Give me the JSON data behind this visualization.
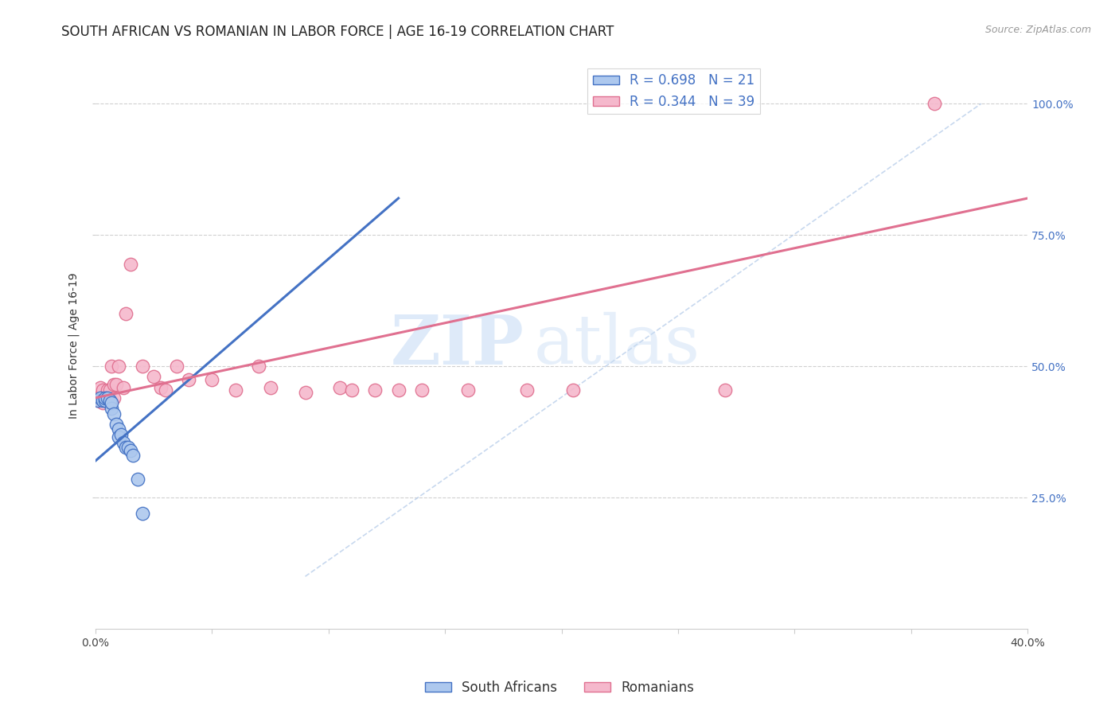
{
  "title": "SOUTH AFRICAN VS ROMANIAN IN LABOR FORCE | AGE 16-19 CORRELATION CHART",
  "source": "Source: ZipAtlas.com",
  "ylabel": "In Labor Force | Age 16-19",
  "xlim": [
    0.0,
    0.4
  ],
  "ylim": [
    0.0,
    1.08
  ],
  "ytick_vals": [
    0.25,
    0.5,
    0.75,
    1.0
  ],
  "ytick_labels": [
    "25.0%",
    "50.0%",
    "75.0%",
    "100.0%"
  ],
  "xtick_vals": [
    0.0,
    0.05,
    0.1,
    0.15,
    0.2,
    0.25,
    0.3,
    0.35,
    0.4
  ],
  "xtick_labels": [
    "0.0%",
    "",
    "",
    "",
    "",
    "",
    "",
    "",
    "40.0%"
  ],
  "south_african_x": [
    0.001,
    0.002,
    0.003,
    0.004,
    0.004,
    0.005,
    0.006,
    0.007,
    0.007,
    0.008,
    0.009,
    0.01,
    0.01,
    0.011,
    0.012,
    0.013,
    0.014,
    0.015,
    0.016,
    0.018,
    0.02
  ],
  "south_african_y": [
    0.435,
    0.44,
    0.435,
    0.435,
    0.44,
    0.44,
    0.435,
    0.42,
    0.43,
    0.41,
    0.39,
    0.38,
    0.365,
    0.37,
    0.355,
    0.345,
    0.345,
    0.34,
    0.33,
    0.285,
    0.22
  ],
  "romanian_x": [
    0.001,
    0.001,
    0.002,
    0.003,
    0.003,
    0.004,
    0.005,
    0.005,
    0.006,
    0.006,
    0.007,
    0.008,
    0.008,
    0.009,
    0.01,
    0.012,
    0.013,
    0.015,
    0.02,
    0.025,
    0.028,
    0.03,
    0.035,
    0.04,
    0.05,
    0.06,
    0.07,
    0.075,
    0.09,
    0.105,
    0.11,
    0.12,
    0.13,
    0.14,
    0.16,
    0.185,
    0.205,
    0.27,
    0.36
  ],
  "romanian_y": [
    0.44,
    0.435,
    0.46,
    0.455,
    0.43,
    0.44,
    0.455,
    0.44,
    0.455,
    0.435,
    0.5,
    0.465,
    0.44,
    0.465,
    0.5,
    0.46,
    0.6,
    0.695,
    0.5,
    0.48,
    0.46,
    0.455,
    0.5,
    0.475,
    0.475,
    0.455,
    0.5,
    0.46,
    0.45,
    0.46,
    0.455,
    0.455,
    0.455,
    0.455,
    0.455,
    0.455,
    0.455,
    0.455,
    1.0
  ],
  "sa_color": "#adc8ee",
  "ro_color": "#f5b8cc",
  "sa_line_color": "#4472c4",
  "ro_line_color": "#e07090",
  "diag_line_color": "#b0c8e8",
  "sa_R": "0.698",
  "sa_N": "21",
  "ro_R": "0.344",
  "ro_N": "39",
  "watermark_zip": "ZIP",
  "watermark_atlas": "atlas",
  "legend_labels": [
    "South Africans",
    "Romanians"
  ],
  "title_fontsize": 12,
  "axis_label_fontsize": 10,
  "tick_fontsize": 10,
  "legend_fontsize": 12,
  "right_tick_color": "#4472c4",
  "sa_line_x": [
    0.0,
    0.13
  ],
  "sa_line_y": [
    0.32,
    0.82
  ],
  "ro_line_x": [
    0.0,
    0.4
  ],
  "ro_line_y": [
    0.44,
    0.82
  ]
}
